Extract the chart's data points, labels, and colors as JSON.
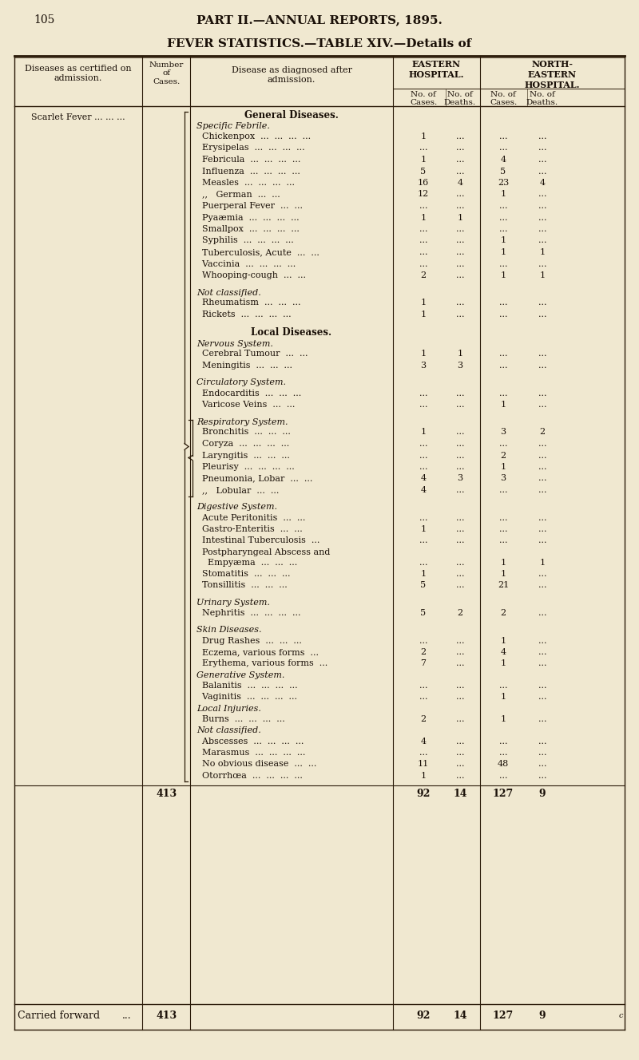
{
  "page_number": "105",
  "header_main": "PART II.—ANNUAL REPORTS, 1895.",
  "header_sub": "FEVER STATISTICS.—TABLE XIV.—Details of",
  "bg_color": "#f0e8d0",
  "rows": [
    {
      "disease_right": "General Diseases.",
      "c1": "",
      "c2": "",
      "c3": "",
      "c4": "",
      "type": "section_header"
    },
    {
      "disease_right": "Specific Febrile.",
      "c1": "",
      "c2": "",
      "c3": "",
      "c4": "",
      "type": "subsection_italic"
    },
    {
      "disease_right": "  Chickenpox  ...  ...  ...  ...",
      "c1": "1",
      "c2": "...",
      "c3": "...",
      "c4": "...",
      "type": "data"
    },
    {
      "disease_right": "  Erysipelas  ...  ...  ...  ...",
      "c1": "...",
      "c2": "...",
      "c3": "...",
      "c4": "...",
      "type": "data"
    },
    {
      "disease_right": "  Febricula  ...  ...  ...  ...",
      "c1": "1",
      "c2": "...",
      "c3": "4",
      "c4": "...",
      "type": "data"
    },
    {
      "disease_right": "  Influenza  ...  ...  ...  ...",
      "c1": "5",
      "c2": "...",
      "c3": "5",
      "c4": "...",
      "type": "data"
    },
    {
      "disease_right": "  Measles  ...  ...  ...  ...",
      "c1": "16",
      "c2": "4",
      "c3": "23",
      "c4": "4",
      "type": "data"
    },
    {
      "disease_right": "  ,,   German  ...  ...",
      "c1": "12",
      "c2": "...",
      "c3": "1",
      "c4": "...",
      "type": "data"
    },
    {
      "disease_right": "  Puerperal Fever  ...  ...",
      "c1": "...",
      "c2": "...",
      "c3": "...",
      "c4": "...",
      "type": "data"
    },
    {
      "disease_right": "  Pyaæmia  ...  ...  ...  ...",
      "c1": "1",
      "c2": "1",
      "c3": "...",
      "c4": "...",
      "type": "data"
    },
    {
      "disease_right": "  Smallpox  ...  ...  ...  ...",
      "c1": "...",
      "c2": "...",
      "c3": "...",
      "c4": "...",
      "type": "data"
    },
    {
      "disease_right": "  Syphilis  ...  ...  ...  ...",
      "c1": "...",
      "c2": "...",
      "c3": "1",
      "c4": "...",
      "type": "data"
    },
    {
      "disease_right": "  Tuberculosis, Acute  ...  ...",
      "c1": "...",
      "c2": "...",
      "c3": "1",
      "c4": "1",
      "type": "data"
    },
    {
      "disease_right": "  Vaccinia  ...  ...  ...  ...",
      "c1": "...",
      "c2": "...",
      "c3": "...",
      "c4": "...",
      "type": "data"
    },
    {
      "disease_right": "  Whooping-cough  ...  ...",
      "c1": "2",
      "c2": "...",
      "c3": "1",
      "c4": "1",
      "type": "data"
    },
    {
      "disease_right": "",
      "c1": "",
      "c2": "",
      "c3": "",
      "c4": "",
      "type": "blank"
    },
    {
      "disease_right": "Not classified.",
      "c1": "",
      "c2": "",
      "c3": "",
      "c4": "",
      "type": "subsection_italic"
    },
    {
      "disease_right": "  Rheumatism  ...  ...  ...",
      "c1": "1",
      "c2": "...",
      "c3": "...",
      "c4": "...",
      "type": "data"
    },
    {
      "disease_right": "  Rickets  ...  ...  ...  ...",
      "c1": "1",
      "c2": "...",
      "c3": "...",
      "c4": "...",
      "type": "data"
    },
    {
      "disease_right": "",
      "c1": "",
      "c2": "",
      "c3": "",
      "c4": "",
      "type": "blank"
    },
    {
      "disease_right": "Local Diseases.",
      "c1": "",
      "c2": "",
      "c3": "",
      "c4": "",
      "type": "section_header"
    },
    {
      "disease_right": "Nervous System.",
      "c1": "",
      "c2": "",
      "c3": "",
      "c4": "",
      "type": "subsection_italic"
    },
    {
      "disease_right": "  Cerebral Tumour  ...  ...",
      "c1": "1",
      "c2": "1",
      "c3": "...",
      "c4": "...",
      "type": "data"
    },
    {
      "disease_right": "  Meningitis  ...  ...  ...",
      "c1": "3",
      "c2": "3",
      "c3": "...",
      "c4": "...",
      "type": "data"
    },
    {
      "disease_right": "",
      "c1": "",
      "c2": "",
      "c3": "",
      "c4": "",
      "type": "blank"
    },
    {
      "disease_right": "Circulatory System.",
      "c1": "",
      "c2": "",
      "c3": "",
      "c4": "",
      "type": "subsection_italic"
    },
    {
      "disease_right": "  Endocarditis  ...  ...  ...",
      "c1": "...",
      "c2": "...",
      "c3": "...",
      "c4": "...",
      "type": "data"
    },
    {
      "disease_right": "  Varicose Veins  ...  ...",
      "c1": "...",
      "c2": "...",
      "c3": "1",
      "c4": "...",
      "type": "data"
    },
    {
      "disease_right": "",
      "c1": "",
      "c2": "",
      "c3": "",
      "c4": "",
      "type": "blank"
    },
    {
      "disease_right": "Respiratory System.",
      "c1": "",
      "c2": "",
      "c3": "",
      "c4": "",
      "type": "subsection_italic"
    },
    {
      "disease_right": "  Bronchitis  ...  ...  ...",
      "c1": "1",
      "c2": "...",
      "c3": "3",
      "c4": "2",
      "type": "data"
    },
    {
      "disease_right": "  Coryza  ...  ...  ...  ...",
      "c1": "...",
      "c2": "...",
      "c3": "...",
      "c4": "...",
      "type": "data"
    },
    {
      "disease_right": "  Laryngitis  ...  ...  ...",
      "c1": "...",
      "c2": "...",
      "c3": "2",
      "c4": "...",
      "type": "data"
    },
    {
      "disease_right": "  Pleurisy  ...  ...  ...  ...",
      "c1": "...",
      "c2": "...",
      "c3": "1",
      "c4": "...",
      "type": "data"
    },
    {
      "disease_right": "  Pneumonia, Lobar  ...  ...",
      "c1": "4",
      "c2": "3",
      "c3": "3",
      "c4": "...",
      "type": "data"
    },
    {
      "disease_right": "  ,,   Lobular  ...  ...",
      "c1": "4",
      "c2": "...",
      "c3": "...",
      "c4": "...",
      "type": "data"
    },
    {
      "disease_right": "",
      "c1": "",
      "c2": "",
      "c3": "",
      "c4": "",
      "type": "blank"
    },
    {
      "disease_right": "Digestive System.",
      "c1": "",
      "c2": "",
      "c3": "",
      "c4": "",
      "type": "subsection_italic"
    },
    {
      "disease_right": "  Acute Peritonitis  ...  ...",
      "c1": "...",
      "c2": "...",
      "c3": "...",
      "c4": "...",
      "type": "data"
    },
    {
      "disease_right": "  Gastro-Enteritis  ...  ...",
      "c1": "1",
      "c2": "...",
      "c3": "...",
      "c4": "...",
      "type": "data"
    },
    {
      "disease_right": "  Intestinal Tuberculosis  ...",
      "c1": "...",
      "c2": "...",
      "c3": "...",
      "c4": "...",
      "type": "data"
    },
    {
      "disease_right": "  Postpharyngeal Abscess and",
      "c1": "",
      "c2": "",
      "c3": "",
      "c4": "",
      "type": "data_nonum"
    },
    {
      "disease_right": "    Empyæma  ...  ...  ...",
      "c1": "...",
      "c2": "...",
      "c3": "1",
      "c4": "1",
      "type": "data"
    },
    {
      "disease_right": "  Stomatitis  ...  ...  ...",
      "c1": "1",
      "c2": "...",
      "c3": "1",
      "c4": "...",
      "type": "data"
    },
    {
      "disease_right": "  Tonsillitis  ...  ...  ...",
      "c1": "5",
      "c2": "...",
      "c3": "21",
      "c4": "...",
      "type": "data"
    },
    {
      "disease_right": "",
      "c1": "",
      "c2": "",
      "c3": "",
      "c4": "",
      "type": "blank"
    },
    {
      "disease_right": "Urinary System.",
      "c1": "",
      "c2": "",
      "c3": "",
      "c4": "",
      "type": "subsection_italic"
    },
    {
      "disease_right": "  Nephritis  ...  ...  ...  ...",
      "c1": "5",
      "c2": "2",
      "c3": "2",
      "c4": "...",
      "type": "data"
    },
    {
      "disease_right": "",
      "c1": "",
      "c2": "",
      "c3": "",
      "c4": "",
      "type": "blank"
    },
    {
      "disease_right": "Skin Diseases.",
      "c1": "",
      "c2": "",
      "c3": "",
      "c4": "",
      "type": "subsection_italic"
    },
    {
      "disease_right": "  Drug Rashes  ...  ...  ...",
      "c1": "...",
      "c2": "...",
      "c3": "1",
      "c4": "...",
      "type": "data"
    },
    {
      "disease_right": "  Eczema, various forms  ...",
      "c1": "2",
      "c2": "...",
      "c3": "4",
      "c4": "...",
      "type": "data"
    },
    {
      "disease_right": "  Erythema, various forms  ...",
      "c1": "7",
      "c2": "...",
      "c3": "1",
      "c4": "...",
      "type": "data"
    },
    {
      "disease_right": "Generative System.",
      "c1": "",
      "c2": "",
      "c3": "",
      "c4": "",
      "type": "subsection_italic"
    },
    {
      "disease_right": "  Balanitis  ...  ...  ...  ...",
      "c1": "...",
      "c2": "...",
      "c3": "...",
      "c4": "...",
      "type": "data"
    },
    {
      "disease_right": "  Vaginitis  ...  ...  ...  ...",
      "c1": "...",
      "c2": "...",
      "c3": "1",
      "c4": "...",
      "type": "data"
    },
    {
      "disease_right": "Local Injuries.",
      "c1": "",
      "c2": "",
      "c3": "",
      "c4": "",
      "type": "subsection_italic"
    },
    {
      "disease_right": "  Burns  ...  ...  ...  ...",
      "c1": "2",
      "c2": "...",
      "c3": "1",
      "c4": "...",
      "type": "data"
    },
    {
      "disease_right": "Not classified.",
      "c1": "",
      "c2": "",
      "c3": "",
      "c4": "",
      "type": "subsection_italic"
    },
    {
      "disease_right": "  Abscesses  ...  ...  ...  ...",
      "c1": "4",
      "c2": "...",
      "c3": "...",
      "c4": "...",
      "type": "data"
    },
    {
      "disease_right": "  Marasmus  ...  ...  ...  ...",
      "c1": "...",
      "c2": "...",
      "c3": "...",
      "c4": "...",
      "type": "data"
    },
    {
      "disease_right": "  No obvious disease  ...  ...",
      "c1": "11",
      "c2": "...",
      "c3": "48",
      "c4": "...",
      "type": "data"
    },
    {
      "disease_right": "  Otorrhœa  ...  ...  ...  ...",
      "c1": "1",
      "c2": "...",
      "c3": "...",
      "c4": "...",
      "type": "data"
    }
  ],
  "totals": {
    "label": "413",
    "c1": "92",
    "c2": "14",
    "c3": "127",
    "c4": "9"
  },
  "carried_forward": {
    "label1": "Carried forward",
    "label2": "413",
    "c1": "92",
    "c2": "14",
    "c3": "127",
    "c4": "9"
  }
}
